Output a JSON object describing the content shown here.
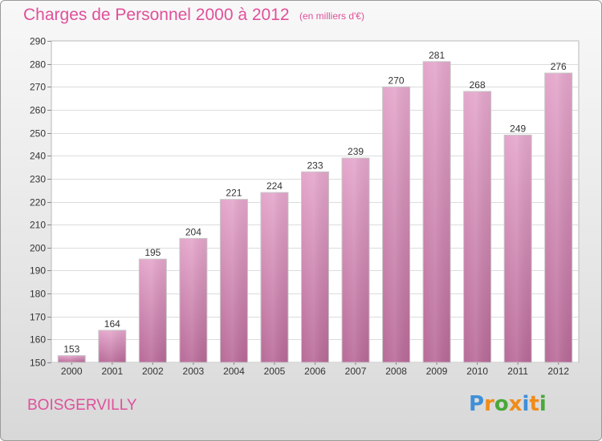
{
  "header": {
    "title": "Charges de Personnel 2000 à 2012",
    "unit": "(en milliers d'€)"
  },
  "footer": {
    "commune": "BOISGERVILLY",
    "logo_letters": [
      "P",
      "r",
      "o",
      "x",
      "i",
      "t",
      "i"
    ],
    "logo_colors": [
      "#3f8fd8",
      "#f08c1a",
      "#4aa83a",
      "#f08c1a",
      "#3f8fd8",
      "#f08c1a",
      "#4aa83a"
    ]
  },
  "chart_data": {
    "type": "bar",
    "title": "Charges de Personnel 2000 à 2012",
    "xlabel": "",
    "ylabel": "",
    "categories": [
      "2000",
      "2001",
      "2002",
      "2003",
      "2004",
      "2005",
      "2006",
      "2007",
      "2008",
      "2009",
      "2010",
      "2011",
      "2012"
    ],
    "values": [
      153,
      164,
      195,
      204,
      221,
      224,
      233,
      239,
      270,
      281,
      268,
      249,
      276
    ],
    "ylim": [
      150,
      290
    ],
    "yticks": [
      150,
      160,
      170,
      180,
      190,
      200,
      210,
      220,
      230,
      240,
      250,
      260,
      270,
      280,
      290
    ],
    "grid": true,
    "bar_color_top": "#e4a6cb",
    "bar_color_bottom": "#b86a98"
  }
}
